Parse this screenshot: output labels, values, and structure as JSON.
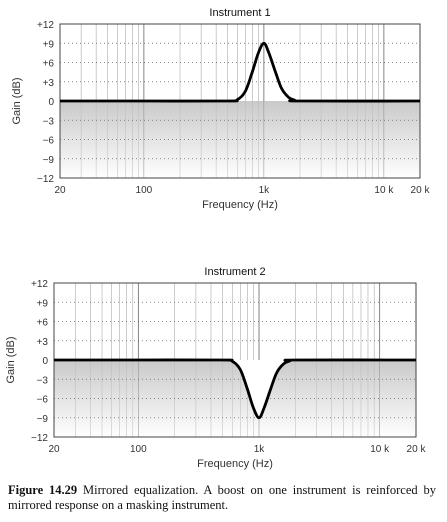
{
  "chart_data": [
    {
      "type": "line",
      "title": "Instrument 1",
      "xlabel": "Frequency (Hz)",
      "ylabel": "Gain (dB)",
      "x_scale": "log",
      "xlim": [
        20,
        20000
      ],
      "ylim": [
        -12,
        12
      ],
      "x_tick_values": [
        20,
        100,
        1000,
        10000,
        20000
      ],
      "x_tick_labels": [
        "20",
        "100",
        "1k",
        "10 k",
        "20 k"
      ],
      "y_tick_values": [
        12,
        9,
        6,
        3,
        0,
        -3,
        -6,
        -9,
        -12
      ],
      "y_tick_labels": [
        "+12",
        "+9",
        "+6",
        "+3",
        "0",
        "−3",
        "−6",
        "−9",
        "−12"
      ],
      "grid": true,
      "series": [
        {
          "x": [
            20,
            100,
            500,
            600,
            700,
            800,
            900,
            1000,
            1100,
            1250,
            1400,
            1600,
            1800,
            2000,
            20000
          ],
          "y": [
            0,
            0,
            0,
            0.2,
            1.5,
            4.5,
            7.5,
            9,
            7.5,
            4.5,
            2.0,
            0.6,
            0.15,
            0,
            0
          ]
        }
      ]
    },
    {
      "type": "line",
      "title": "Instrument 2",
      "xlabel": "Frequency (Hz)",
      "ylabel": "Gain (dB)",
      "x_scale": "log",
      "xlim": [
        20,
        20000
      ],
      "ylim": [
        -12,
        12
      ],
      "x_tick_values": [
        20,
        100,
        1000,
        10000,
        20000
      ],
      "x_tick_labels": [
        "20",
        "100",
        "1k",
        "10 k",
        "20 k"
      ],
      "y_tick_values": [
        12,
        9,
        6,
        3,
        0,
        -3,
        -6,
        -9,
        -12
      ],
      "y_tick_labels": [
        "+12",
        "+9",
        "+6",
        "+3",
        "0",
        "−3",
        "−6",
        "−9",
        "−12"
      ],
      "grid": true,
      "series": [
        {
          "x": [
            20,
            100,
            500,
            600,
            700,
            800,
            900,
            1000,
            1100,
            1250,
            1400,
            1600,
            1800,
            2000,
            20000
          ],
          "y": [
            0,
            0,
            0,
            -0.2,
            -1.5,
            -4.5,
            -7.5,
            -9,
            -7.5,
            -4.5,
            -2.0,
            -0.6,
            -0.15,
            0,
            0
          ]
        }
      ]
    }
  ],
  "caption": {
    "label": "Figure 14.29",
    "text": " Mirrored equalization. A boost on one instrument is reinforced by mirrored response on a masking instrument."
  }
}
